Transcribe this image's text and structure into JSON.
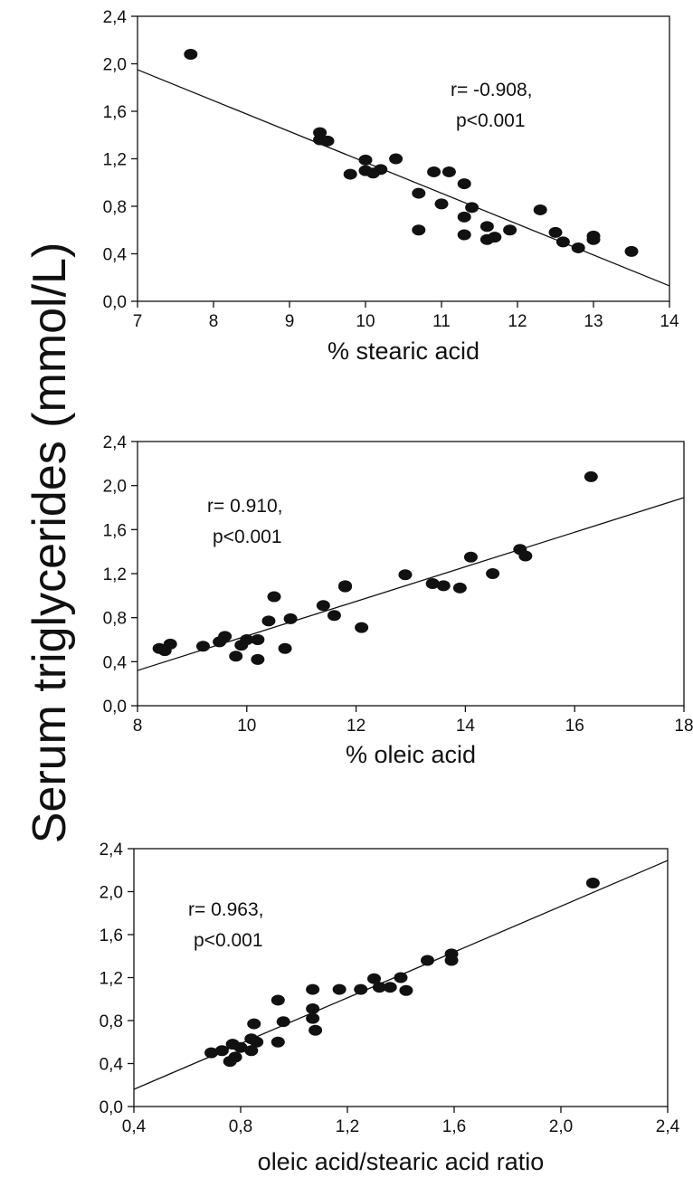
{
  "shared_ylabel": "Serum triglycerides (mmol/L)",
  "chart_data": [
    {
      "type": "scatter",
      "xlabel": "% stearic acid",
      "ylabel": "Serum triglycerides (mmol/L)",
      "xlim": [
        7,
        14
      ],
      "ylim": [
        0,
        2.4
      ],
      "xticks": [
        7,
        8,
        9,
        10,
        11,
        12,
        13,
        14
      ],
      "xtick_labels": [
        "7",
        "8",
        "9",
        "10",
        "11",
        "12",
        "13",
        "14"
      ],
      "yticks": [
        0,
        0.4,
        0.8,
        1.2,
        1.6,
        2.0,
        2.4
      ],
      "ytick_labels": [
        "0,0",
        "0,4",
        "0,8",
        "1,2",
        "1,6",
        "2,0",
        "2,4"
      ],
      "annotation": [
        "r= -0.908,",
        "p<0.001"
      ],
      "regression_line": {
        "x": [
          7,
          14
        ],
        "y": [
          1.95,
          0.13
        ]
      },
      "points": [
        [
          7.7,
          2.08
        ],
        [
          9.4,
          1.42
        ],
        [
          9.4,
          1.36
        ],
        [
          9.5,
          1.35
        ],
        [
          10.0,
          1.19
        ],
        [
          10.4,
          1.2
        ],
        [
          9.8,
          1.07
        ],
        [
          10.0,
          1.1
        ],
        [
          10.1,
          1.08
        ],
        [
          10.2,
          1.11
        ],
        [
          10.9,
          1.09
        ],
        [
          11.1,
          1.09
        ],
        [
          11.3,
          0.99
        ],
        [
          10.7,
          0.91
        ],
        [
          11.0,
          0.82
        ],
        [
          11.4,
          0.79
        ],
        [
          12.3,
          0.77
        ],
        [
          11.3,
          0.71
        ],
        [
          11.6,
          0.63
        ],
        [
          10.7,
          0.6
        ],
        [
          11.9,
          0.6
        ],
        [
          11.3,
          0.56
        ],
        [
          11.7,
          0.54
        ],
        [
          11.6,
          0.52
        ],
        [
          12.5,
          0.58
        ],
        [
          12.6,
          0.5
        ],
        [
          13.0,
          0.55
        ],
        [
          13.0,
          0.52
        ],
        [
          12.8,
          0.45
        ],
        [
          13.5,
          0.42
        ]
      ]
    },
    {
      "type": "scatter",
      "xlabel": "% oleic acid",
      "ylabel": "Serum triglycerides (mmol/L)",
      "xlim": [
        8,
        18
      ],
      "ylim": [
        0,
        2.4
      ],
      "xticks": [
        8,
        10,
        12,
        14,
        16,
        18
      ],
      "xtick_labels": [
        "8",
        "10",
        "12",
        "14",
        "16",
        "18"
      ],
      "yticks": [
        0,
        0.4,
        0.8,
        1.2,
        1.6,
        2.0,
        2.4
      ],
      "ytick_labels": [
        "0,0",
        "0,4",
        "0,8",
        "1,2",
        "1,6",
        "2,0",
        "2,4"
      ],
      "annotation": [
        "r= 0.910,",
        "p<0.001"
      ],
      "regression_line": {
        "x": [
          8,
          18
        ],
        "y": [
          0.32,
          1.89
        ]
      },
      "points": [
        [
          16.3,
          2.08
        ],
        [
          15.0,
          1.42
        ],
        [
          15.1,
          1.36
        ],
        [
          14.1,
          1.35
        ],
        [
          14.5,
          1.2
        ],
        [
          12.9,
          1.19
        ],
        [
          13.4,
          1.11
        ],
        [
          13.6,
          1.09
        ],
        [
          13.9,
          1.07
        ],
        [
          11.8,
          1.09
        ],
        [
          11.8,
          1.08
        ],
        [
          10.5,
          0.99
        ],
        [
          11.4,
          0.91
        ],
        [
          11.6,
          0.82
        ],
        [
          10.8,
          0.79
        ],
        [
          10.4,
          0.77
        ],
        [
          12.1,
          0.71
        ],
        [
          9.6,
          0.63
        ],
        [
          10.0,
          0.6
        ],
        [
          10.2,
          0.6
        ],
        [
          9.5,
          0.58
        ],
        [
          9.9,
          0.55
        ],
        [
          8.6,
          0.56
        ],
        [
          9.2,
          0.54
        ],
        [
          8.4,
          0.52
        ],
        [
          8.5,
          0.5
        ],
        [
          10.7,
          0.52
        ],
        [
          9.8,
          0.45
        ],
        [
          10.2,
          0.42
        ]
      ]
    },
    {
      "type": "scatter",
      "xlabel": "oleic acid/stearic acid ratio",
      "ylabel": "Serum triglycerides (mmol/L)",
      "xlim": [
        0.4,
        2.4
      ],
      "ylim": [
        0,
        2.4
      ],
      "xticks": [
        0.4,
        0.8,
        1.2,
        1.6,
        2.0,
        2.4
      ],
      "xtick_labels": [
        "0,4",
        "0,8",
        "1,2",
        "1,6",
        "2,0",
        "2,4"
      ],
      "yticks": [
        0,
        0.4,
        0.8,
        1.2,
        1.6,
        2.0,
        2.4
      ],
      "ytick_labels": [
        "0,0",
        "0,4",
        "0,8",
        "1,2",
        "1,6",
        "2,0",
        "2,4"
      ],
      "annotation": [
        "r= 0.963,",
        "p<0.001"
      ],
      "regression_line": {
        "x": [
          0.4,
          2.4
        ],
        "y": [
          0.16,
          2.29
        ]
      },
      "points": [
        [
          2.12,
          2.08
        ],
        [
          1.59,
          1.42
        ],
        [
          1.59,
          1.36
        ],
        [
          1.5,
          1.36
        ],
        [
          1.3,
          1.19
        ],
        [
          1.4,
          1.2
        ],
        [
          1.32,
          1.11
        ],
        [
          1.36,
          1.11
        ],
        [
          1.42,
          1.08
        ],
        [
          1.25,
          1.09
        ],
        [
          1.17,
          1.09
        ],
        [
          1.07,
          1.09
        ],
        [
          0.94,
          0.99
        ],
        [
          1.07,
          0.91
        ],
        [
          1.07,
          0.82
        ],
        [
          0.96,
          0.79
        ],
        [
          0.85,
          0.77
        ],
        [
          1.08,
          0.71
        ],
        [
          0.84,
          0.63
        ],
        [
          0.86,
          0.6
        ],
        [
          0.94,
          0.6
        ],
        [
          0.77,
          0.58
        ],
        [
          0.8,
          0.55
        ],
        [
          0.84,
          0.52
        ],
        [
          0.73,
          0.52
        ],
        [
          0.69,
          0.5
        ],
        [
          0.78,
          0.46
        ],
        [
          0.76,
          0.42
        ]
      ]
    }
  ]
}
